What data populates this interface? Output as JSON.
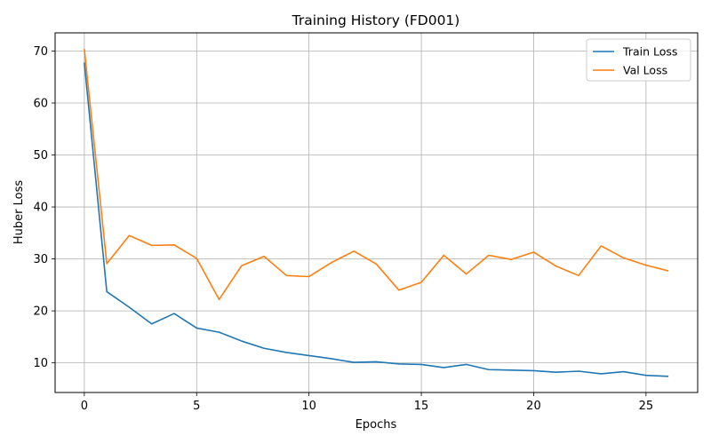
{
  "chart_data": {
    "type": "line",
    "title": "Training History (FD001)",
    "xlabel": "Epochs",
    "ylabel": "Huber Loss",
    "x": [
      0,
      1,
      2,
      3,
      4,
      5,
      6,
      7,
      8,
      9,
      10,
      11,
      12,
      13,
      14,
      15,
      16,
      17,
      18,
      19,
      20,
      21,
      22,
      23,
      24,
      25,
      26
    ],
    "xlim": [
      -1.3,
      27.3
    ],
    "ylim": [
      4.3,
      73.5
    ],
    "xticks": [
      0,
      5,
      10,
      15,
      20,
      25
    ],
    "yticks": [
      10,
      20,
      30,
      40,
      50,
      60,
      70
    ],
    "grid": true,
    "legend_position": "top-right",
    "series": [
      {
        "name": "Train Loss",
        "color": "#1f77b4",
        "values": [
          67.8,
          23.7,
          20.7,
          17.5,
          19.5,
          16.7,
          15.9,
          14.2,
          12.8,
          12.0,
          11.4,
          10.8,
          10.1,
          10.2,
          9.8,
          9.7,
          9.1,
          9.7,
          8.7,
          8.6,
          8.5,
          8.2,
          8.4,
          7.9,
          8.3,
          7.6,
          7.4
        ]
      },
      {
        "name": "Val Loss",
        "color": "#ff7f0e",
        "values": [
          70.4,
          29.1,
          34.5,
          32.6,
          32.7,
          30.1,
          22.2,
          28.7,
          30.5,
          26.8,
          26.6,
          29.3,
          31.5,
          29.0,
          24.0,
          25.5,
          30.7,
          27.1,
          30.7,
          29.9,
          31.3,
          28.6,
          26.8,
          32.5,
          30.2,
          28.8,
          27.7
        ]
      }
    ]
  }
}
